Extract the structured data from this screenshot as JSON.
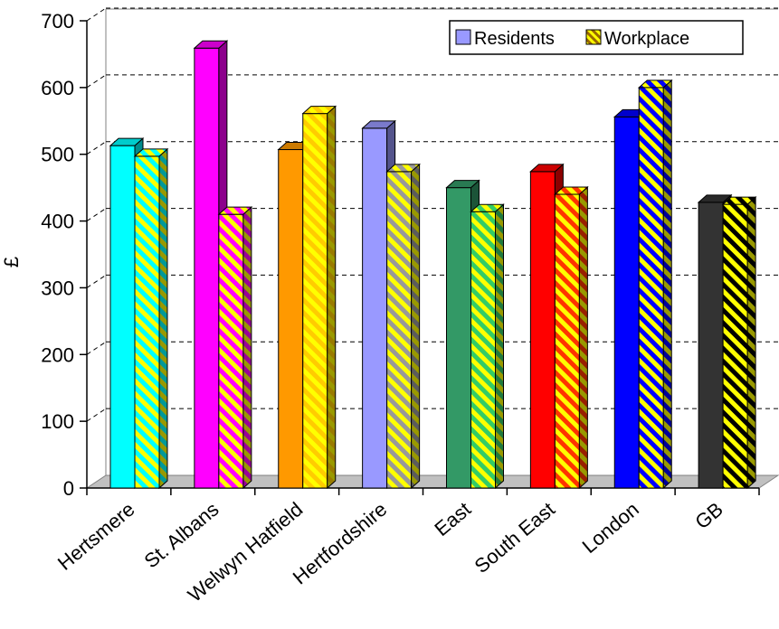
{
  "chart_data": {
    "type": "bar",
    "title": "",
    "xlabel": "",
    "ylabel": "£",
    "ylim": [
      0,
      700
    ],
    "yticks": [
      "0",
      "100",
      "200",
      "300",
      "400",
      "500",
      "600",
      "700"
    ],
    "grid": true,
    "legend_position": "top-right",
    "categories": [
      "Hertsmere",
      "St. Albans",
      "Welwyn Hatfield",
      "Hertfordshire",
      "East",
      "South East",
      "London",
      "GB"
    ],
    "series": [
      {
        "name": "Residents",
        "pattern": "solid",
        "legend_color": "#9999ff",
        "values": [
          513,
          659,
          507,
          539,
          450,
          474,
          556,
          428
        ]
      },
      {
        "name": "Workplace",
        "pattern": "striped",
        "legend_color": "#ffff00",
        "values": [
          497,
          410,
          561,
          474,
          414,
          440,
          600,
          425
        ]
      }
    ],
    "colors": {
      "residents": [
        "#00ffff",
        "#ff00ff",
        "#ff9900",
        "#9999ff",
        "#339966",
        "#ff0000",
        "#0000ff",
        "#333333"
      ],
      "workplace_stripe": [
        "#00ffff",
        "#ff00ff",
        "#ffcc00",
        "#999999",
        "#33cc66",
        "#ff3300",
        "#0000ff",
        "#000000"
      ],
      "floor": "#c0c0c0"
    }
  }
}
